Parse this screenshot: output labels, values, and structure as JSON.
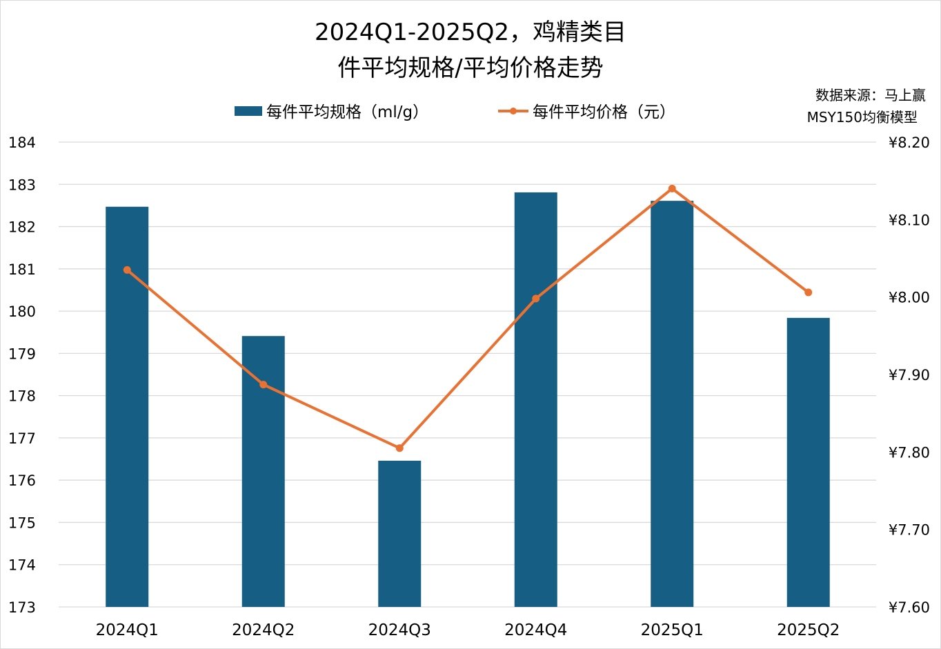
{
  "chart_data": {
    "type": "bar+line",
    "title_lines": [
      "2024Q1-2025Q2，鸡精类目",
      "件平均规格/平均价格走势"
    ],
    "source_lines": [
      "数据来源：马上赢",
      "MSY150均衡模型"
    ],
    "categories": [
      "2024Q1",
      "2024Q2",
      "2024Q3",
      "2024Q4",
      "2025Q1",
      "2025Q2"
    ],
    "series": [
      {
        "name": "每件平均规格（ml/g）",
        "type": "bar",
        "axis": "left",
        "color": "#165E83",
        "values": [
          182.47,
          179.41,
          176.46,
          182.81,
          182.61,
          179.84
        ]
      },
      {
        "name": "每件平均价格（元）",
        "type": "line",
        "axis": "right",
        "color": "#E97132",
        "values": [
          8.035,
          7.887,
          7.805,
          7.998,
          8.14,
          8.006
        ]
      }
    ],
    "left_axis": {
      "ylim": [
        173,
        184
      ],
      "ticks": [
        "173",
        "174",
        "175",
        "176",
        "177",
        "178",
        "179",
        "180",
        "181",
        "182",
        "183",
        "184"
      ]
    },
    "right_axis": {
      "ylim": [
        7.6,
        8.2
      ],
      "ticks": [
        "¥7.60",
        "¥7.70",
        "¥7.80",
        "¥7.90",
        "¥8.00",
        "¥8.10",
        "¥8.20"
      ]
    },
    "grid": true,
    "legend_position": "top"
  }
}
